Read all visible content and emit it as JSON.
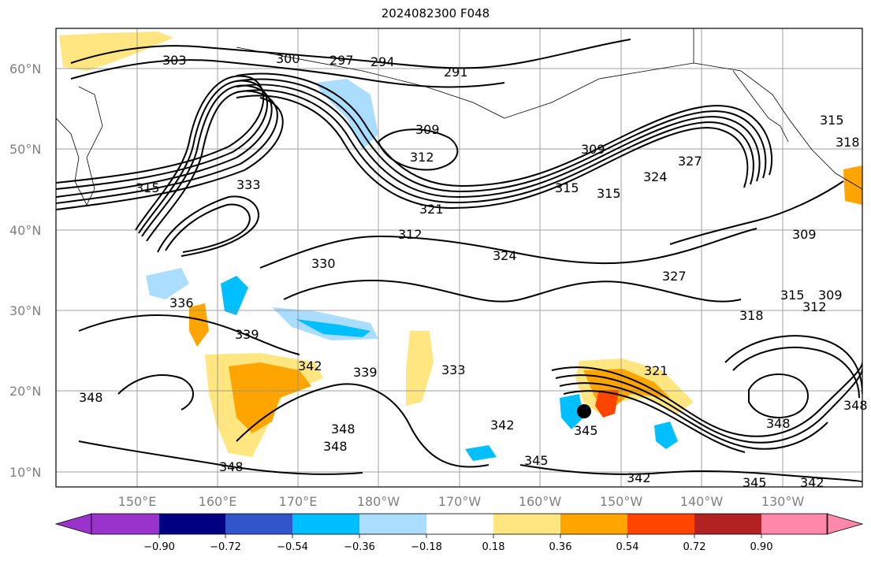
{
  "title": "2024082300 F048",
  "lat_labels": [
    "60°N",
    "50°N",
    "40°N",
    "30°N",
    "20°N",
    "10°N"
  ],
  "lon_labels": [
    "150°E",
    "160°E",
    "170°E",
    "180°W",
    "170°W",
    "160°W",
    "150°W",
    "140°W",
    "130°W"
  ],
  "colorbar": {
    "tick_labels": [
      "−0.90",
      "−0.72",
      "−0.54",
      "−0.36",
      "−0.18",
      "0.18",
      "0.36",
      "0.54",
      "0.72",
      "0.90"
    ],
    "colors": [
      "#9933cc",
      "#000080",
      "#3355cc",
      "#00bfff",
      "#aaddff",
      "#ffffff",
      "#ffe680",
      "#ffa500",
      "#ff4500",
      "#b22222",
      "#ff88aa"
    ]
  },
  "contour_labels": [
    "303",
    "300",
    "297",
    "294",
    "291",
    "309",
    "312",
    "309",
    "315",
    "315",
    "315",
    "327",
    "324",
    "321",
    "312",
    "318",
    "315",
    "312",
    "309",
    "309",
    "324",
    "327",
    "333",
    "330",
    "336",
    "339",
    "342",
    "339",
    "333",
    "348",
    "348",
    "348",
    "348",
    "342",
    "345",
    "345",
    "342",
    "345",
    "342",
    "348",
    "348",
    "321",
    "318",
    "315"
  ]
}
